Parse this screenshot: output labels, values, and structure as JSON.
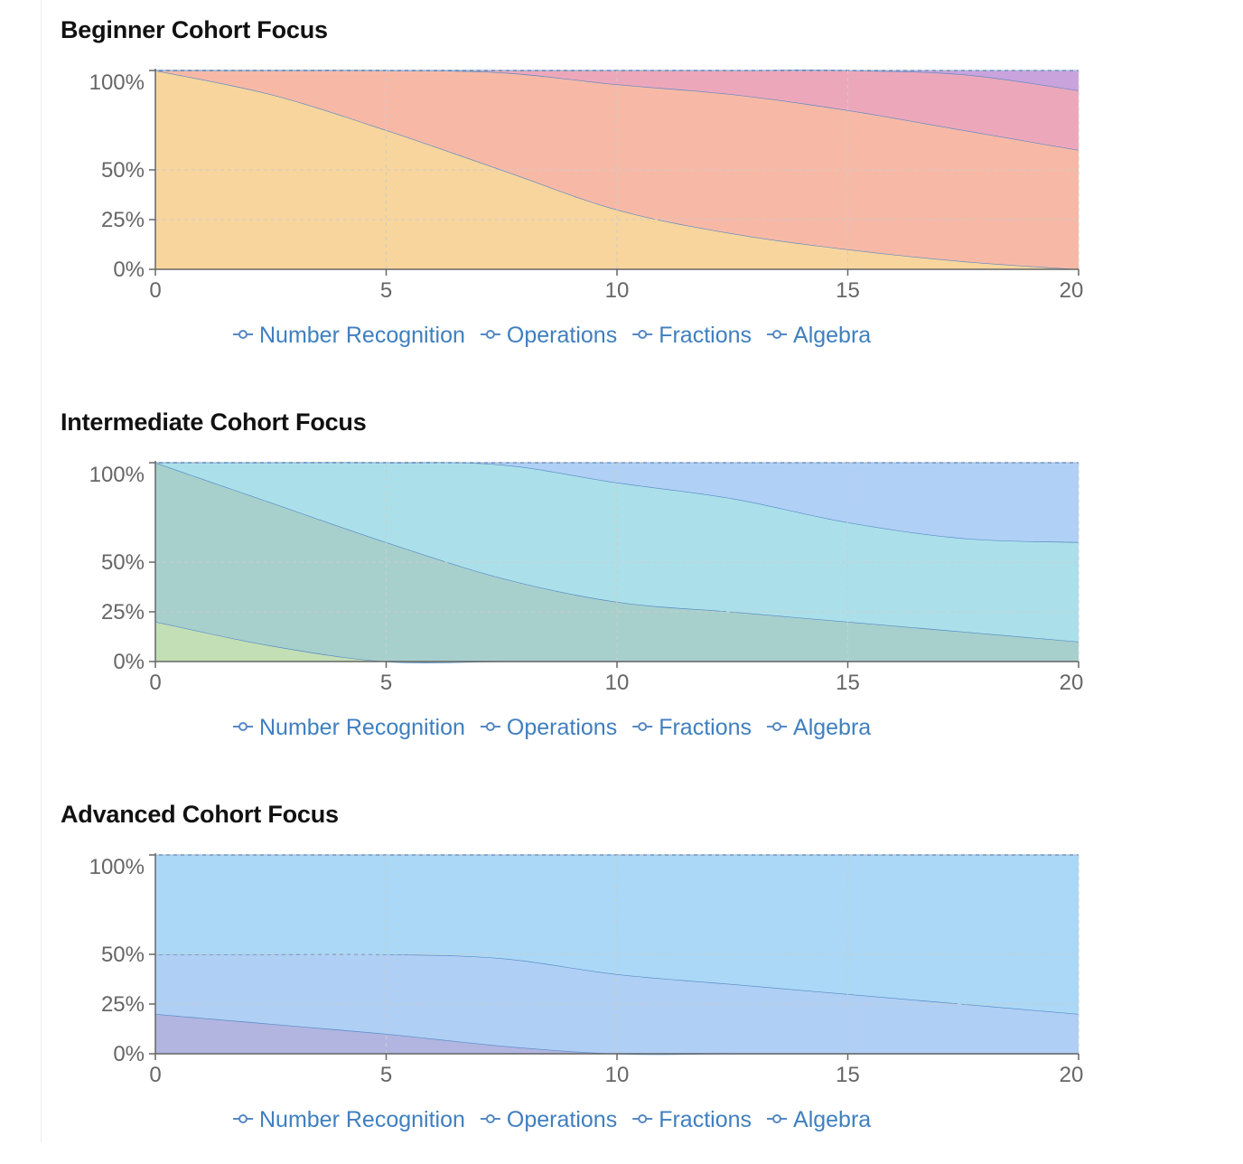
{
  "colors": {
    "line": "#5588c4",
    "legend_text": "#3f7fbf",
    "axis": "#666666",
    "grid": "#cccccc"
  },
  "chart_data": [
    {
      "type": "area",
      "stacked": true,
      "title": "Beginner Cohort Focus",
      "x": [
        0,
        2.5,
        5,
        7.5,
        10,
        12.5,
        15,
        17.5,
        20
      ],
      "xlim": [
        0,
        20
      ],
      "x_ticks": [
        0,
        5,
        10,
        15,
        20
      ],
      "y_ticks": [
        0,
        25,
        50,
        100
      ],
      "y_tick_labels": [
        "0%",
        "25%",
        "50%",
        "100%"
      ],
      "ylim": [
        0,
        100
      ],
      "grid": true,
      "legend_position": "bottom",
      "series": [
        {
          "name": "Number Recognition",
          "color": "#f8d59d",
          "values": [
            100,
            88,
            70,
            50,
            30,
            18,
            10,
            4,
            0
          ]
        },
        {
          "name": "Operations",
          "color": "#f7b9a6",
          "values": [
            0,
            12,
            30,
            49,
            63,
            70,
            70,
            66,
            60
          ]
        },
        {
          "name": "Fractions",
          "color": "#eda7bb",
          "values": [
            0,
            0,
            0,
            1,
            7,
            12,
            20,
            28,
            30
          ]
        },
        {
          "name": "Algebra",
          "color": "#c9a3dc",
          "values": [
            0,
            0,
            0,
            0,
            0,
            0,
            0,
            2,
            10
          ]
        }
      ]
    },
    {
      "type": "area",
      "stacked": true,
      "title": "Intermediate Cohort Focus",
      "x": [
        0,
        2.5,
        5,
        7.5,
        10,
        12.5,
        15,
        17.5,
        20
      ],
      "xlim": [
        0,
        20
      ],
      "x_ticks": [
        0,
        5,
        10,
        15,
        20
      ],
      "y_ticks": [
        0,
        25,
        50,
        100
      ],
      "y_tick_labels": [
        "0%",
        "25%",
        "50%",
        "100%"
      ],
      "ylim": [
        0,
        100
      ],
      "grid": true,
      "legend_position": "bottom",
      "series": [
        {
          "name": "Number Recognition",
          "color": "#c3dfb5",
          "values": [
            20,
            8,
            0,
            0,
            0,
            0,
            0,
            0,
            0
          ]
        },
        {
          "name": "Operations",
          "color": "#a7d0cd",
          "values": [
            80,
            72,
            60,
            42,
            30,
            25,
            20,
            15,
            10
          ]
        },
        {
          "name": "Fractions",
          "color": "#abe0ea",
          "values": [
            0,
            20,
            40,
            57,
            60,
            57,
            50,
            47,
            50
          ]
        },
        {
          "name": "Algebra",
          "color": "#b0d0f5",
          "values": [
            0,
            0,
            0,
            1,
            10,
            18,
            30,
            38,
            40
          ]
        }
      ]
    },
    {
      "type": "area",
      "stacked": true,
      "title": "Advanced Cohort Focus",
      "x": [
        0,
        2.5,
        5,
        7.5,
        10,
        12.5,
        15,
        17.5,
        20
      ],
      "xlim": [
        0,
        20
      ],
      "x_ticks": [
        0,
        5,
        10,
        15,
        20
      ],
      "y_ticks": [
        0,
        25,
        50,
        100
      ],
      "y_tick_labels": [
        "0%",
        "25%",
        "50%",
        "100%"
      ],
      "ylim": [
        0,
        100
      ],
      "grid": true,
      "legend_position": "bottom",
      "series": [
        {
          "name": "Number Recognition",
          "color": "#e8c4a0",
          "values": [
            0,
            0,
            0,
            0,
            0,
            0,
            0,
            0,
            0
          ]
        },
        {
          "name": "Operations",
          "color": "#b1b5e0",
          "values": [
            20,
            15,
            10,
            4,
            0,
            0,
            0,
            0,
            0
          ]
        },
        {
          "name": "Fractions",
          "color": "#afcff5",
          "values": [
            30,
            35,
            40,
            44,
            40,
            35,
            30,
            25,
            20
          ]
        },
        {
          "name": "Algebra",
          "color": "#aad8f6",
          "values": [
            50,
            50,
            50,
            52,
            60,
            65,
            70,
            75,
            80
          ]
        }
      ]
    }
  ]
}
